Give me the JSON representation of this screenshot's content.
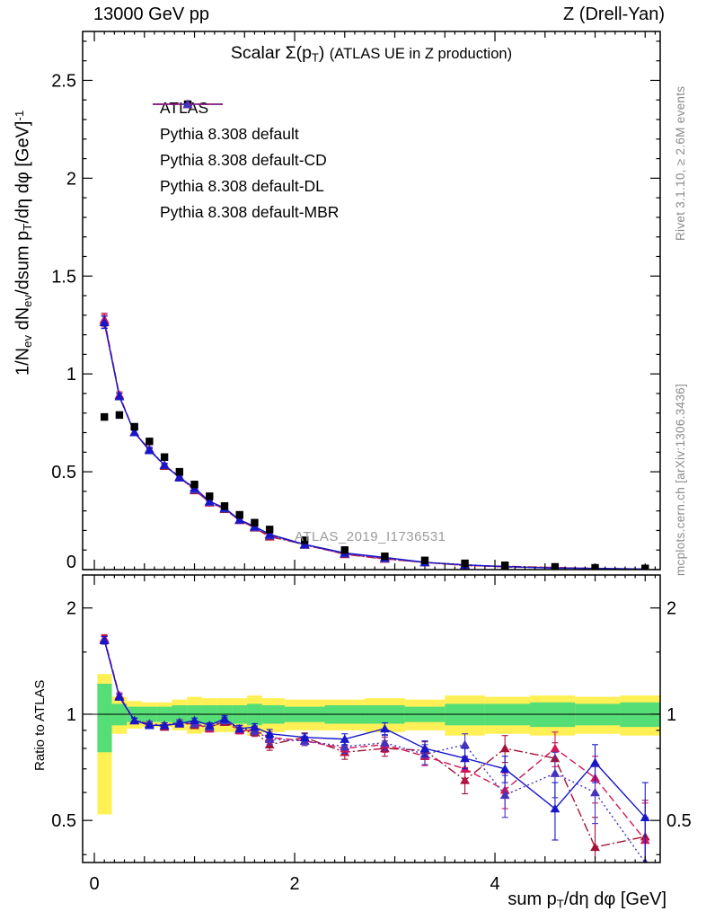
{
  "header": {
    "left": "13000 GeV pp",
    "right": "Z (Drell-Yan)"
  },
  "side_notes": {
    "top": "Rivet 3.1.10, ≥ 2.6M events",
    "bottom": "mcplots.cern.ch [arXiv:1306.3436]"
  },
  "watermark": "ATLAS_2019_I1736531",
  "chart_data": {
    "type": "line",
    "title_rich": [
      {
        "t": "Scalar Σ(p"
      },
      {
        "sub": "T"
      },
      {
        "t": ") "
      },
      {
        "small": "(ATLAS UE in Z production)"
      }
    ],
    "ylabel_main_rich": [
      {
        "t": "1/N"
      },
      {
        "sub": "ev"
      },
      {
        "t": " dN"
      },
      {
        "sub": "ev"
      },
      {
        "t": "/dsum p"
      },
      {
        "sub": "T"
      },
      {
        "t": "/dη dφ  [GeV]"
      },
      {
        "sup": "-1"
      }
    ],
    "ylabel_ratio": "Ratio to ATLAS",
    "xlabel_rich": [
      {
        "t": "sum p"
      },
      {
        "sub": "T"
      },
      {
        "t": "/dη dφ [GeV]"
      }
    ],
    "legend_position": "top-left",
    "colors": {
      "band_outer": "#fff056",
      "band_inner": "#55dd76",
      "frame": "#000000"
    },
    "axes": {
      "x": {
        "min": -0.117,
        "max": 5.65,
        "major": [
          [
            0,
            "0"
          ],
          [
            2,
            "2"
          ],
          [
            4,
            "4"
          ]
        ],
        "med_step": 0.5,
        "fine_step": 0.1
      },
      "y_main": {
        "min": 0,
        "max": 2.75,
        "major": [
          [
            0,
            "0"
          ],
          [
            0.5,
            "0.5"
          ],
          [
            1,
            "1"
          ],
          [
            1.5,
            "1.5"
          ],
          [
            2,
            "2"
          ],
          [
            2.5,
            "2.5"
          ]
        ],
        "minor_step": 0.1
      },
      "y_ratio": {
        "scale": "log",
        "min": 0.38,
        "max": 2.48,
        "major": [
          [
            0.5,
            "0.5"
          ],
          [
            1,
            "1"
          ],
          [
            2,
            "2"
          ]
        ],
        "minor": [
          0.4,
          0.6,
          0.7,
          0.8,
          0.9,
          1.5
        ]
      }
    },
    "x": [
      0.1,
      0.25,
      0.4,
      0.55,
      0.7,
      0.85,
      1.0,
      1.15,
      1.3,
      1.45,
      1.6,
      1.75,
      2.1,
      2.5,
      2.9,
      3.3,
      3.7,
      4.1,
      4.6,
      5.0,
      5.5
    ],
    "series": [
      {
        "name": "ATLAS",
        "marker": "square",
        "color": "#000000",
        "line": "none",
        "values": [
          0.78,
          0.79,
          0.73,
          0.655,
          0.575,
          0.5,
          0.435,
          0.375,
          0.325,
          0.28,
          0.24,
          0.205,
          0.15,
          0.1,
          0.068,
          0.047,
          0.032,
          0.022,
          0.014,
          0.009,
          0.006
        ],
        "err_rel": 0.02
      },
      {
        "name": "Pythia 8.308 default",
        "marker": "triangle",
        "color": "#1717c9",
        "line": "solid",
        "ratio": [
          1.62,
          1.12,
          0.96,
          0.93,
          0.93,
          0.94,
          0.96,
          0.93,
          0.97,
          0.91,
          0.92,
          0.88,
          0.86,
          0.85,
          0.91,
          0.8,
          0.75,
          0.7,
          0.54,
          0.73,
          0.51
        ],
        "err": [
          0.04,
          0.02,
          0.015,
          0.015,
          0.015,
          0.015,
          0.015,
          0.015,
          0.02,
          0.02,
          0.02,
          0.025,
          0.02,
          0.03,
          0.035,
          0.04,
          0.05,
          0.06,
          0.1,
          0.09,
          0.13
        ]
      },
      {
        "name": "Pythia 8.308 default-CD",
        "marker": "triangle",
        "color": "#a11236",
        "line": "dashdot",
        "ratio": [
          1.63,
          1.12,
          0.96,
          0.94,
          0.92,
          0.95,
          0.93,
          0.92,
          0.95,
          0.9,
          0.89,
          0.82,
          0.86,
          0.78,
          0.8,
          0.79,
          0.65,
          0.8,
          0.75,
          0.42,
          0.45
        ],
        "err": [
          0.04,
          0.02,
          0.015,
          0.015,
          0.015,
          0.015,
          0.015,
          0.02,
          0.02,
          0.02,
          0.025,
          0.03,
          0.025,
          0.035,
          0.04,
          0.045,
          0.055,
          0.07,
          0.08,
          0.09,
          0.12
        ]
      },
      {
        "name": "Pythia 8.308 default-DL",
        "marker": "triangle",
        "color": "#d41558",
        "line": "dash",
        "ratio": [
          1.64,
          1.13,
          0.96,
          0.93,
          0.93,
          0.94,
          0.94,
          0.91,
          0.96,
          0.9,
          0.9,
          0.86,
          0.84,
          0.8,
          0.82,
          0.76,
          0.7,
          0.61,
          0.8,
          0.66,
          0.44
        ],
        "err": [
          0.04,
          0.02,
          0.015,
          0.015,
          0.015,
          0.015,
          0.015,
          0.02,
          0.02,
          0.02,
          0.025,
          0.03,
          0.025,
          0.035,
          0.04,
          0.045,
          0.055,
          0.07,
          0.09,
          0.1,
          0.12
        ]
      },
      {
        "name": "Pythia 8.308 default-MBR",
        "marker": "triangle",
        "color": "#4633bd",
        "line": "dot",
        "ratio": [
          1.62,
          1.12,
          0.96,
          0.94,
          0.93,
          0.95,
          0.94,
          0.92,
          0.96,
          0.91,
          0.9,
          0.85,
          0.84,
          0.81,
          0.83,
          0.77,
          0.82,
          0.59,
          0.68,
          0.6,
          0.38
        ],
        "err": [
          0.04,
          0.02,
          0.015,
          0.015,
          0.015,
          0.015,
          0.015,
          0.02,
          0.02,
          0.02,
          0.025,
          0.03,
          0.025,
          0.035,
          0.04,
          0.05,
          0.06,
          0.08,
          0.1,
          0.11,
          0.13
        ]
      }
    ],
    "bands": {
      "edges": [
        0.03,
        0.175,
        0.325,
        0.475,
        0.625,
        0.775,
        0.925,
        1.075,
        1.225,
        1.375,
        1.525,
        1.675,
        1.9,
        2.3,
        2.7,
        3.1,
        3.5,
        3.9,
        4.35,
        4.8,
        5.25,
        5.7
      ],
      "yellow": [
        [
          0.52,
          1.3
        ],
        [
          0.88,
          1.12
        ],
        [
          0.91,
          1.09
        ],
        [
          0.92,
          1.08
        ],
        [
          0.92,
          1.08
        ],
        [
          0.9,
          1.1
        ],
        [
          0.88,
          1.12
        ],
        [
          0.89,
          1.11
        ],
        [
          0.89,
          1.11
        ],
        [
          0.89,
          1.11
        ],
        [
          0.87,
          1.13
        ],
        [
          0.89,
          1.11
        ],
        [
          0.9,
          1.1
        ],
        [
          0.9,
          1.1
        ],
        [
          0.89,
          1.11
        ],
        [
          0.9,
          1.1
        ],
        [
          0.87,
          1.13
        ],
        [
          0.88,
          1.12
        ],
        [
          0.87,
          1.13
        ],
        [
          0.88,
          1.12
        ],
        [
          0.87,
          1.13
        ]
      ],
      "green": [
        [
          0.78,
          1.22
        ],
        [
          0.93,
          1.07
        ],
        [
          0.95,
          1.05
        ],
        [
          0.95,
          1.05
        ],
        [
          0.95,
          1.05
        ],
        [
          0.94,
          1.06
        ],
        [
          0.94,
          1.06
        ],
        [
          0.94,
          1.06
        ],
        [
          0.94,
          1.06
        ],
        [
          0.94,
          1.06
        ],
        [
          0.93,
          1.07
        ],
        [
          0.94,
          1.06
        ],
        [
          0.95,
          1.05
        ],
        [
          0.94,
          1.06
        ],
        [
          0.94,
          1.06
        ],
        [
          0.95,
          1.05
        ],
        [
          0.93,
          1.07
        ],
        [
          0.93,
          1.07
        ],
        [
          0.92,
          1.08
        ],
        [
          0.93,
          1.07
        ],
        [
          0.92,
          1.08
        ]
      ]
    }
  }
}
